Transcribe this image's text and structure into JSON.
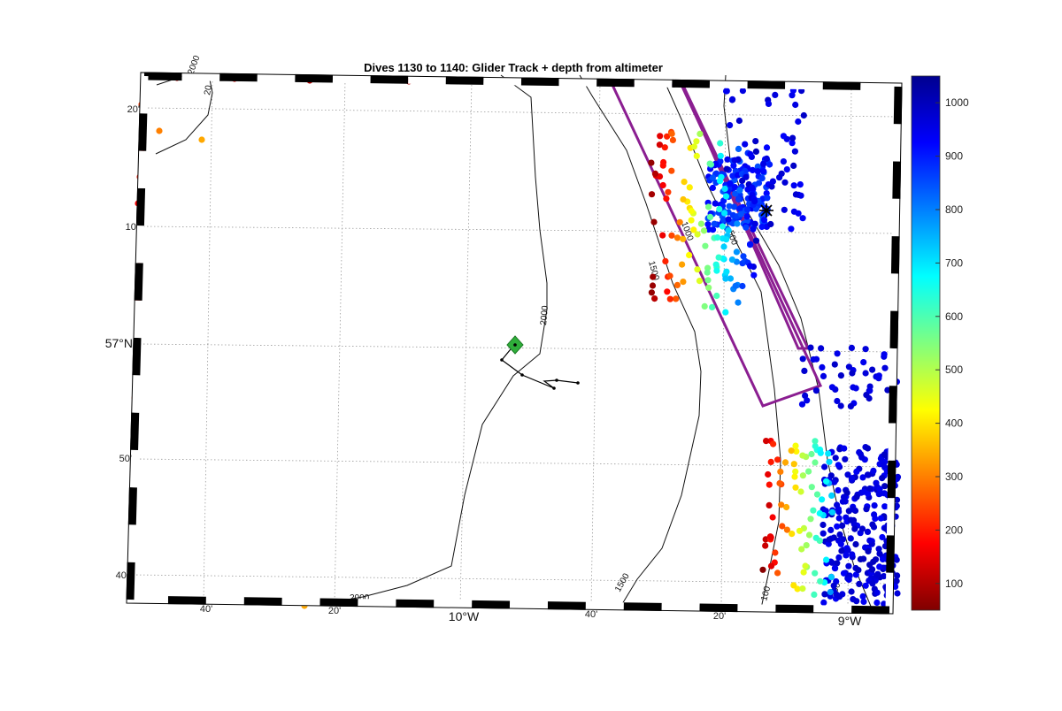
{
  "title": "Dives 1130 to 1140: Glider Track + depth from altimeter",
  "axes": {
    "lat_labels": [
      "20'",
      "10'",
      "57°N",
      "50'",
      "40'"
    ],
    "lon_labels": [
      "40'",
      "20'",
      "10°W",
      "40'",
      "20'",
      "9°W"
    ]
  },
  "contours": {
    "labels": [
      "2000",
      "20",
      "2000",
      "1500",
      "1500",
      "1000",
      "500",
      "100",
      "500",
      "2000"
    ]
  },
  "colorbar": {
    "ticks": [
      "1000",
      "900",
      "800",
      "700",
      "600",
      "500",
      "400",
      "300",
      "200",
      "100"
    ],
    "range": [
      50,
      1050
    ],
    "colormap": "jet"
  },
  "colors": {
    "survey_box": "#8b1e91",
    "start_marker": "#2fae3a",
    "track": "#000000"
  },
  "markers": {
    "start": "green-diamond",
    "mooring": "asterisk"
  }
}
